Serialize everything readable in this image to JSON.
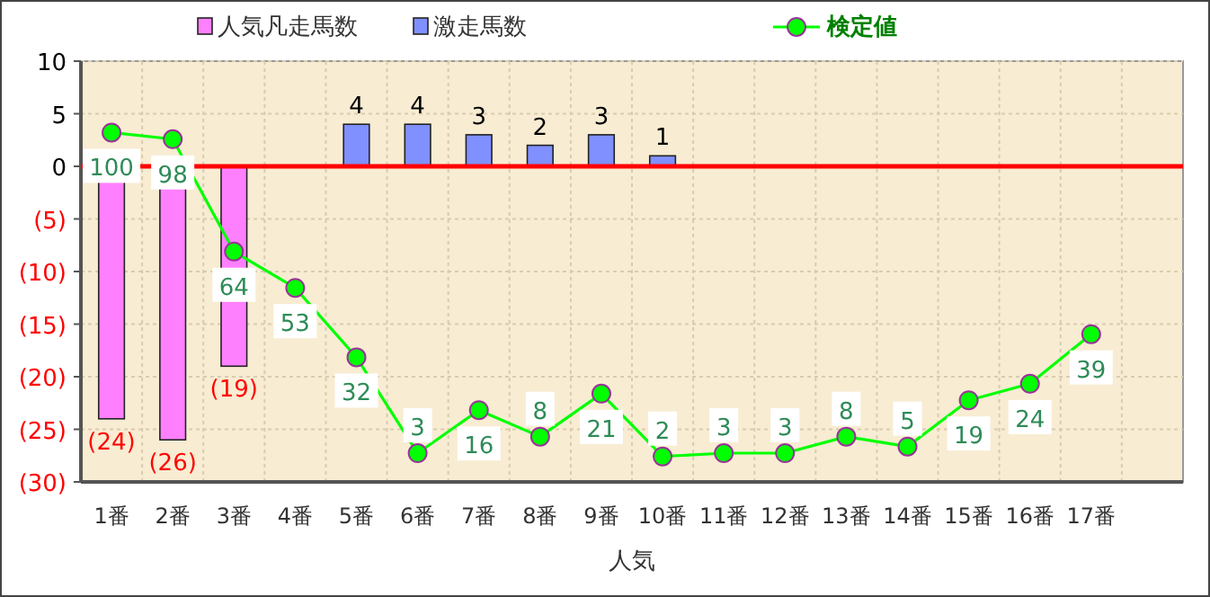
{
  "chart_data": {
    "type": "bar",
    "xlabel": "人気",
    "categories": [
      "1番",
      "2番",
      "3番",
      "4番",
      "5番",
      "6番",
      "7番",
      "8番",
      "9番",
      "10番",
      "11番",
      "12番",
      "13番",
      "14番",
      "15番",
      "16番",
      "17番",
      null
    ],
    "series": [
      {
        "name": "人気凡走馬数",
        "color": "#ff80ff",
        "values": [
          -24,
          -26,
          -19,
          null,
          null,
          null,
          null,
          null,
          null,
          null,
          null,
          null,
          null,
          null,
          null,
          null,
          null,
          null
        ],
        "value_labels": [
          "(24)",
          "(26)",
          "(19)",
          null,
          null,
          null,
          null,
          null,
          null,
          null,
          null,
          null,
          null,
          null,
          null,
          null,
          null,
          null
        ]
      },
      {
        "name": "激走馬数",
        "color": "#8090ff",
        "values": [
          null,
          null,
          null,
          null,
          4,
          4,
          3,
          2,
          3,
          1,
          null,
          null,
          null,
          null,
          null,
          null,
          null,
          null
        ],
        "value_labels": [
          null,
          null,
          null,
          null,
          "4",
          "4",
          "3",
          "2",
          "3",
          "1",
          null,
          null,
          null,
          null,
          null,
          null,
          null,
          null
        ]
      },
      {
        "name": "検定値",
        "type": "line",
        "axis": "y2",
        "color": "#00ff00",
        "marker": "circle",
        "values": [
          100,
          98,
          64,
          53,
          32,
          3,
          16,
          8,
          21,
          2,
          3,
          3,
          8,
          5,
          19,
          24,
          39,
          null
        ],
        "value_labels": [
          "100",
          "98",
          "64",
          "53",
          "32",
          "3",
          "16",
          "8",
          "21",
          "2",
          "3",
          "3",
          "8",
          "5",
          "19",
          "24",
          "39",
          null
        ]
      }
    ],
    "ylim": [
      -30,
      10
    ],
    "yticks": [
      10,
      5,
      0,
      {
        "value": -5,
        "label": "(5)"
      },
      {
        "value": -10,
        "label": "(10)"
      },
      {
        "value": -15,
        "label": "(15)"
      },
      {
        "value": -20,
        "label": "(20)"
      },
      {
        "value": -25,
        "label": "(25)"
      },
      {
        "value": -30,
        "label": "(30)"
      }
    ],
    "y2lim": [
      -5.7,
      121.6
    ],
    "ref_lines": [
      {
        "axis": "y",
        "value": 0,
        "color": "#ff0000"
      }
    ],
    "grid": true,
    "legend": "top"
  }
}
